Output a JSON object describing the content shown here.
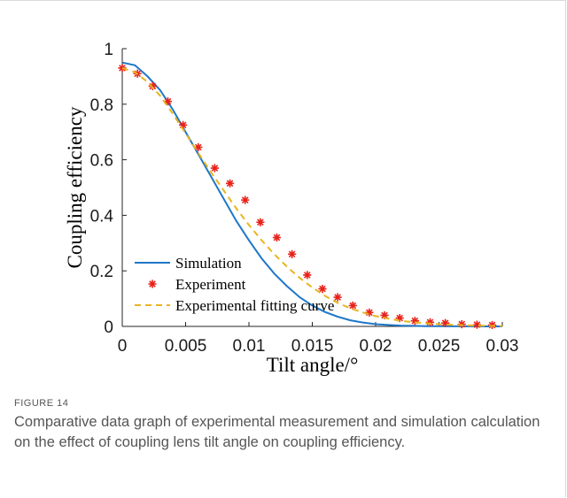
{
  "chart_data": {
    "type": "line",
    "xlabel": "Tilt angle/°",
    "ylabel": "Coupling efficiency",
    "xlim": [
      0,
      0.03
    ],
    "ylim": [
      0,
      1
    ],
    "xticks": [
      0,
      0.005,
      0.01,
      0.015,
      0.02,
      0.025,
      0.03
    ],
    "xtick_labels": [
      "0",
      "0.005",
      "0.01",
      "0.015",
      "0.02",
      "0.025",
      "0.03"
    ],
    "yticks": [
      0,
      0.2,
      0.4,
      0.6,
      0.8,
      1
    ],
    "ytick_labels": [
      "0",
      "0.2",
      "0.4",
      "0.6",
      "0.8",
      "1"
    ],
    "grid": false,
    "legend_position": "bottom-left",
    "series": [
      {
        "name": "Simulation",
        "style": "solid-line",
        "color": "#1f77c8",
        "x": [
          0,
          0.001,
          0.002,
          0.003,
          0.004,
          0.005,
          0.006,
          0.007,
          0.008,
          0.009,
          0.01,
          0.011,
          0.012,
          0.013,
          0.014,
          0.015,
          0.016,
          0.017,
          0.018,
          0.019,
          0.02,
          0.021,
          0.022,
          0.023,
          0.024,
          0.025,
          0.026,
          0.027,
          0.028,
          0.029,
          0.03
        ],
        "y": [
          0.95,
          0.94,
          0.9,
          0.85,
          0.78,
          0.7,
          0.62,
          0.54,
          0.46,
          0.38,
          0.31,
          0.245,
          0.19,
          0.145,
          0.105,
          0.075,
          0.052,
          0.035,
          0.022,
          0.014,
          0.008,
          0.005,
          0.003,
          0.002,
          0.001,
          0.0005,
          0.0003,
          0.0002,
          0.0001,
          0.0001,
          0.0
        ]
      },
      {
        "name": "Experiment",
        "style": "star-markers",
        "color": "#e8221a",
        "x": [
          0,
          0.0012,
          0.0024,
          0.0036,
          0.0048,
          0.006,
          0.0073,
          0.0085,
          0.0097,
          0.0109,
          0.0122,
          0.0134,
          0.0146,
          0.0158,
          0.017,
          0.0182,
          0.0195,
          0.0207,
          0.0219,
          0.0231,
          0.0243,
          0.0255,
          0.0268,
          0.028,
          0.0292
        ],
        "y": [
          0.93,
          0.91,
          0.865,
          0.81,
          0.725,
          0.645,
          0.57,
          0.515,
          0.455,
          0.375,
          0.32,
          0.26,
          0.185,
          0.135,
          0.105,
          0.075,
          0.05,
          0.04,
          0.03,
          0.02,
          0.015,
          0.012,
          0.008,
          0.006,
          0.005
        ]
      },
      {
        "name": "Experimental fitting curve",
        "style": "dashed-line",
        "color": "#e8b520",
        "x": [
          0,
          0.001,
          0.002,
          0.003,
          0.004,
          0.005,
          0.006,
          0.007,
          0.008,
          0.009,
          0.01,
          0.011,
          0.012,
          0.013,
          0.014,
          0.015,
          0.016,
          0.017,
          0.018,
          0.019,
          0.02,
          0.021,
          0.022,
          0.023,
          0.024,
          0.025,
          0.026,
          0.027,
          0.028,
          0.029,
          0.03
        ],
        "y": [
          0.93,
          0.915,
          0.88,
          0.83,
          0.765,
          0.695,
          0.625,
          0.555,
          0.49,
          0.425,
          0.365,
          0.31,
          0.26,
          0.215,
          0.175,
          0.14,
          0.11,
          0.085,
          0.065,
          0.05,
          0.037,
          0.028,
          0.02,
          0.015,
          0.011,
          0.008,
          0.006,
          0.004,
          0.003,
          0.002,
          0.0015
        ]
      }
    ]
  },
  "caption": {
    "label": "FIGURE 14",
    "text": "Comparative data graph of experimental measurement and simulation calculation on the effect of coupling lens tilt angle on coupling efficiency."
  }
}
